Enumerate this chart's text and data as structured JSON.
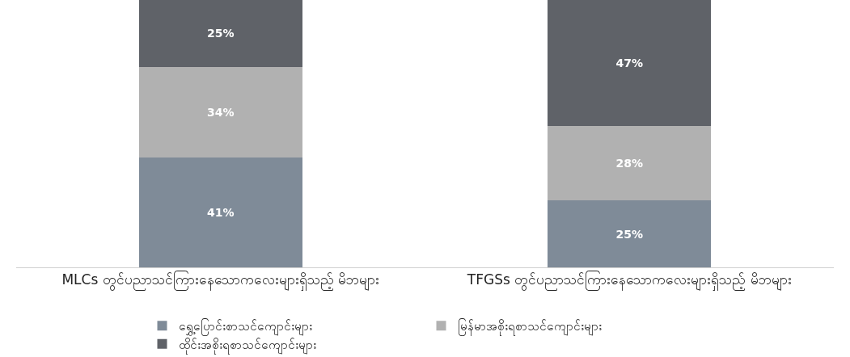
{
  "chart_data": {
    "type": "bar",
    "stacked": true,
    "categories": [
      "MLCs တွင်ပညာသင်ကြားနေသောကလေးများရှိသည့် မိဘများ",
      "TFGSs တွင်ပညာသင်ကြားနေသောကလေးများရှိသည့် မိဘများ"
    ],
    "series": [
      {
        "name": "ရွှေ့ပြောင်းစာသင်ကျောင်းများ",
        "color": "#7f8b98",
        "values": [
          41,
          25
        ],
        "value_labels": [
          "41%",
          "25%"
        ]
      },
      {
        "name": "မြန်မာအစိုးရစာသင်ကျောင်းများ",
        "color": "#b1b1b1",
        "values": [
          34,
          28
        ],
        "value_labels": [
          "34%",
          "28%"
        ]
      },
      {
        "name": "ထိုင်းအစိုးရစာသင်ကျောင်းများ",
        "color": "#5f6268",
        "values": [
          25,
          47
        ],
        "value_labels": [
          "25%",
          "47%"
        ]
      }
    ],
    "ylim": [
      0,
      100
    ],
    "tick_labels": "x",
    "grid": false,
    "legend": "bottom"
  }
}
